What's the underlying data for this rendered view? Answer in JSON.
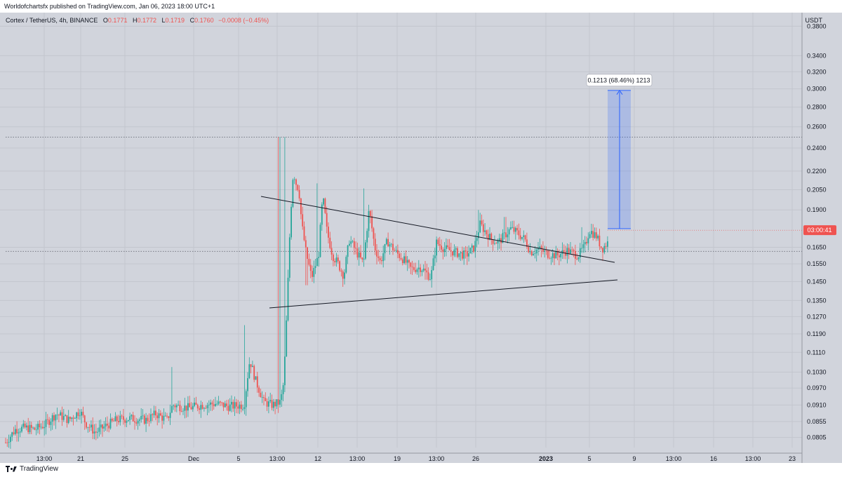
{
  "header": {
    "published_text": "Worldofchartsfx published on TradingView.com, Jan 06, 2023 18:00 UTC+1"
  },
  "legend": {
    "symbol": "Cortex / TetherUS, 4h, BINANCE",
    "o_label": "O",
    "o_value": "0.1771",
    "h_label": "H",
    "h_value": "0.1772",
    "l_label": "L",
    "l_value": "0.1719",
    "c_label": "C",
    "c_value": "0.1760",
    "change": "−0.0008 (−0.45%)"
  },
  "price_axis": {
    "unit": "USDT",
    "current_price_label": "03:00:41"
  },
  "measure": {
    "label": "0.1213 (68.46%) 1213",
    "from": 0.177,
    "to": 0.2983
  },
  "footer": {
    "brand": "TradingView"
  },
  "colors": {
    "up": "#26a69a",
    "down": "#ef5350",
    "measure": "#2962ff",
    "bg": "#d1d4dc"
  },
  "chart_data": {
    "type": "candlestick",
    "title": "Cortex / TetherUS, 4h, BINANCE",
    "scale": "log",
    "ylim": [
      0.0775,
      0.4
    ],
    "y_ticks": [
      "0.3800",
      "0.3400",
      "0.3200",
      "0.3000",
      "0.2800",
      "0.2600",
      "0.2400",
      "0.2200",
      "0.2050",
      "0.1900",
      "0.1650",
      "0.1550",
      "0.1450",
      "0.1350",
      "0.1270",
      "0.1190",
      "0.1110",
      "0.1030",
      "0.0970",
      "0.0910",
      "0.0855",
      "0.0805"
    ],
    "x_ticks": [
      "13:00",
      "21",
      "25",
      "Dec",
      "5",
      "13:00",
      "12",
      "13:00",
      "19",
      "13:00",
      "26",
      "2023",
      "5",
      "9",
      "13:00",
      "16",
      "13:00",
      "23"
    ],
    "reference_levels": [
      0.25,
      0.1625
    ],
    "current_price": 0.176,
    "trendlines": [
      {
        "name": "upper",
        "start": {
          "x": "Dec 08",
          "y": 0.221
        },
        "end": {
          "x": "Jan 07",
          "y": 0.171
        }
      },
      {
        "name": "lower",
        "start": {
          "x": "Dec 09",
          "y": 0.141
        },
        "end": {
          "x": "Jan 07",
          "y": 0.159
        }
      }
    ],
    "candle_anchors": [
      [
        0,
        0.079
      ],
      [
        14,
        0.083
      ],
      [
        28,
        0.0835
      ],
      [
        42,
        0.083
      ],
      [
        56,
        0.0845
      ],
      [
        72,
        0.088
      ],
      [
        90,
        0.086
      ],
      [
        106,
        0.089
      ],
      [
        114,
        0.085
      ],
      [
        128,
        0.082
      ],
      [
        142,
        0.084
      ],
      [
        158,
        0.086
      ],
      [
        176,
        0.0865
      ],
      [
        200,
        0.086
      ],
      [
        214,
        0.088
      ],
      [
        230,
        0.086
      ],
      [
        238,
        0.091
      ],
      [
        248,
        0.0905
      ],
      [
        262,
        0.09
      ],
      [
        280,
        0.091
      ],
      [
        300,
        0.0915
      ],
      [
        318,
        0.0905
      ],
      [
        340,
        0.091
      ],
      [
        348,
        0.108
      ],
      [
        356,
        0.1
      ],
      [
        368,
        0.092
      ],
      [
        380,
        0.091
      ],
      [
        392,
        0.092
      ],
      [
        396,
        0.0985
      ],
      [
        399,
        0.114
      ],
      [
        402,
        0.14
      ],
      [
        406,
        0.185
      ],
      [
        410,
        0.22
      ],
      [
        414,
        0.21
      ],
      [
        418,
        0.205
      ],
      [
        422,
        0.18
      ],
      [
        428,
        0.162
      ],
      [
        436,
        0.147
      ],
      [
        446,
        0.16
      ],
      [
        452,
        0.2
      ],
      [
        458,
        0.175
      ],
      [
        466,
        0.16
      ],
      [
        474,
        0.155
      ],
      [
        482,
        0.148
      ],
      [
        490,
        0.17
      ],
      [
        500,
        0.162
      ],
      [
        510,
        0.155
      ],
      [
        518,
        0.19
      ],
      [
        526,
        0.165
      ],
      [
        534,
        0.156
      ],
      [
        544,
        0.169
      ],
      [
        556,
        0.162
      ],
      [
        566,
        0.158
      ],
      [
        578,
        0.152
      ],
      [
        592,
        0.153
      ],
      [
        606,
        0.147
      ],
      [
        614,
        0.168
      ],
      [
        626,
        0.164
      ],
      [
        640,
        0.162
      ],
      [
        656,
        0.16
      ],
      [
        668,
        0.165
      ],
      [
        676,
        0.18
      ],
      [
        684,
        0.175
      ],
      [
        692,
        0.17
      ],
      [
        702,
        0.168
      ],
      [
        712,
        0.173
      ],
      [
        720,
        0.177
      ],
      [
        730,
        0.174
      ],
      [
        740,
        0.17
      ],
      [
        748,
        0.162
      ],
      [
        760,
        0.164
      ],
      [
        772,
        0.161
      ],
      [
        786,
        0.16
      ],
      [
        800,
        0.163
      ],
      [
        816,
        0.16
      ],
      [
        826,
        0.166
      ],
      [
        832,
        0.176
      ],
      [
        842,
        0.172
      ],
      [
        850,
        0.164
      ],
      [
        858,
        0.168
      ],
      [
        864,
        0.176
      ]
    ]
  }
}
